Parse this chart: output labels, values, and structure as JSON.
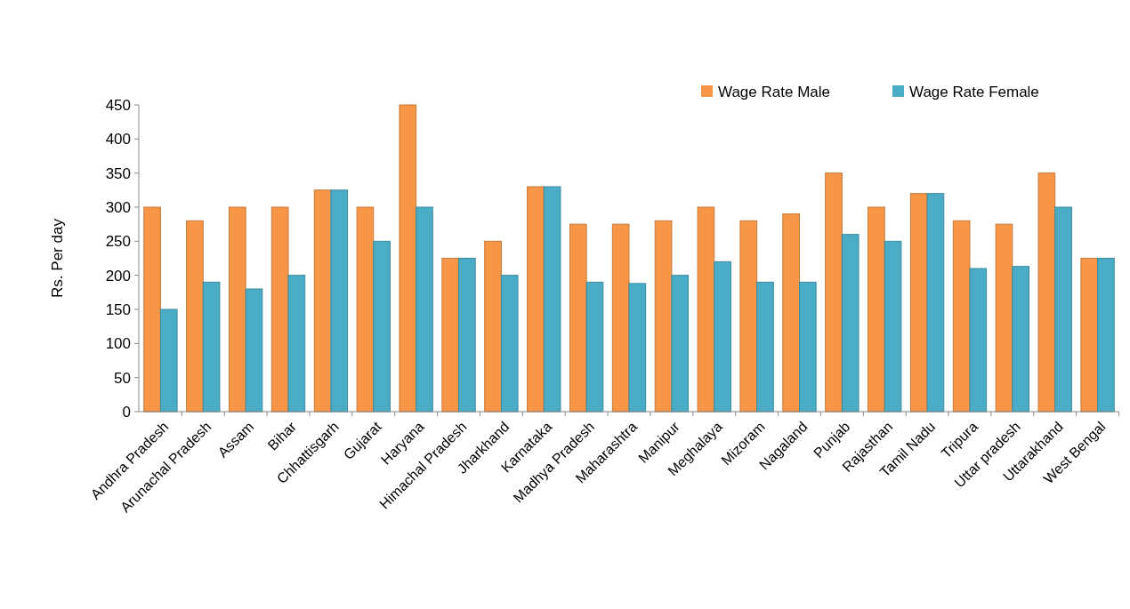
{
  "chart_data": {
    "type": "bar",
    "ylabel": "Rs. Per day",
    "categories": [
      "Andhra Pradesh",
      "Arunachal Pradesh",
      "Assam",
      "Bihar",
      "Chhattisgarh",
      "Gujarat",
      "Haryana",
      "Himachal Pradesh",
      "Jharkhand",
      "Karnataka",
      "Madhya Pradesh",
      "Maharashtra",
      "Manipur",
      "Meghalaya",
      "Mizoram",
      "Nagaland",
      "Punjab",
      "Rajasthan",
      "Tamil Nadu",
      "Tripura",
      "Uttar pradesh",
      "Uttarakhand",
      "West Bengal"
    ],
    "series": [
      {
        "name": "Wage Rate Male",
        "color": "#f79646",
        "values": [
          300,
          280,
          300,
          300,
          325,
          300,
          450,
          225,
          250,
          330,
          275,
          275,
          280,
          300,
          280,
          290,
          350,
          300,
          320,
          280,
          275,
          350,
          225
        ]
      },
      {
        "name": "Wage Rate Female",
        "color": "#4bacc6",
        "values": [
          150,
          190,
          180,
          200,
          325,
          250,
          300,
          225,
          200,
          330,
          190,
          188,
          200,
          220,
          190,
          190,
          260,
          250,
          320,
          210,
          213,
          300,
          225
        ]
      }
    ],
    "ylim": [
      0,
      450
    ],
    "yticks": [
      0,
      50,
      100,
      150,
      200,
      250,
      300,
      350,
      400,
      450
    ],
    "grid": false,
    "legend": "top right"
  }
}
